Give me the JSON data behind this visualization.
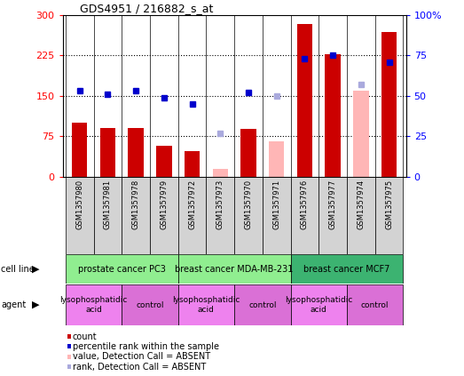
{
  "title": "GDS4951 / 216882_s_at",
  "samples": [
    "GSM1357980",
    "GSM1357981",
    "GSM1357978",
    "GSM1357979",
    "GSM1357972",
    "GSM1357973",
    "GSM1357970",
    "GSM1357971",
    "GSM1357976",
    "GSM1357977",
    "GSM1357974",
    "GSM1357975"
  ],
  "count_values": [
    100,
    90,
    90,
    58,
    48,
    null,
    88,
    null,
    283,
    228,
    null,
    268
  ],
  "rank_values": [
    53,
    51,
    53,
    49,
    45,
    null,
    52,
    null,
    73,
    75,
    null,
    71
  ],
  "count_absent": [
    null,
    null,
    null,
    null,
    null,
    14,
    null,
    65,
    null,
    null,
    160,
    null
  ],
  "rank_absent": [
    null,
    null,
    null,
    null,
    null,
    27,
    null,
    50,
    null,
    null,
    57,
    null
  ],
  "cell_lines": [
    {
      "label": "prostate cancer PC3",
      "start": 0,
      "end": 4,
      "color": "#90ee90"
    },
    {
      "label": "breast cancer MDA-MB-231",
      "start": 4,
      "end": 8,
      "color": "#90ee90"
    },
    {
      "label": "breast cancer MCF7",
      "start": 8,
      "end": 12,
      "color": "#3cb371"
    }
  ],
  "agents": [
    {
      "label": "lysophosphatidic\nacid",
      "start": 0,
      "end": 2,
      "color": "#ee82ee"
    },
    {
      "label": "control",
      "start": 2,
      "end": 4,
      "color": "#da70d6"
    },
    {
      "label": "lysophosphatidic\nacid",
      "start": 4,
      "end": 6,
      "color": "#ee82ee"
    },
    {
      "label": "control",
      "start": 6,
      "end": 8,
      "color": "#da70d6"
    },
    {
      "label": "lysophosphatidic\nacid",
      "start": 8,
      "end": 10,
      "color": "#ee82ee"
    },
    {
      "label": "control",
      "start": 10,
      "end": 12,
      "color": "#da70d6"
    }
  ],
  "ylim_left": [
    0,
    300
  ],
  "ylim_right": [
    0,
    100
  ],
  "yticks_left": [
    0,
    75,
    150,
    225,
    300
  ],
  "yticks_right": [
    0,
    25,
    50,
    75,
    100
  ],
  "ytick_labels_right": [
    "0",
    "25",
    "50",
    "75",
    "100%"
  ],
  "bar_color": "#cc0000",
  "bar_absent_color": "#ffb6b6",
  "rank_color": "#0000cc",
  "rank_absent_color": "#aaaadd",
  "bar_width": 0.55,
  "legend_items": [
    {
      "label": "count",
      "color": "#cc0000"
    },
    {
      "label": "percentile rank within the sample",
      "color": "#0000cc"
    },
    {
      "label": "value, Detection Call = ABSENT",
      "color": "#ffb6b6"
    },
    {
      "label": "rank, Detection Call = ABSENT",
      "color": "#aaaadd"
    }
  ]
}
